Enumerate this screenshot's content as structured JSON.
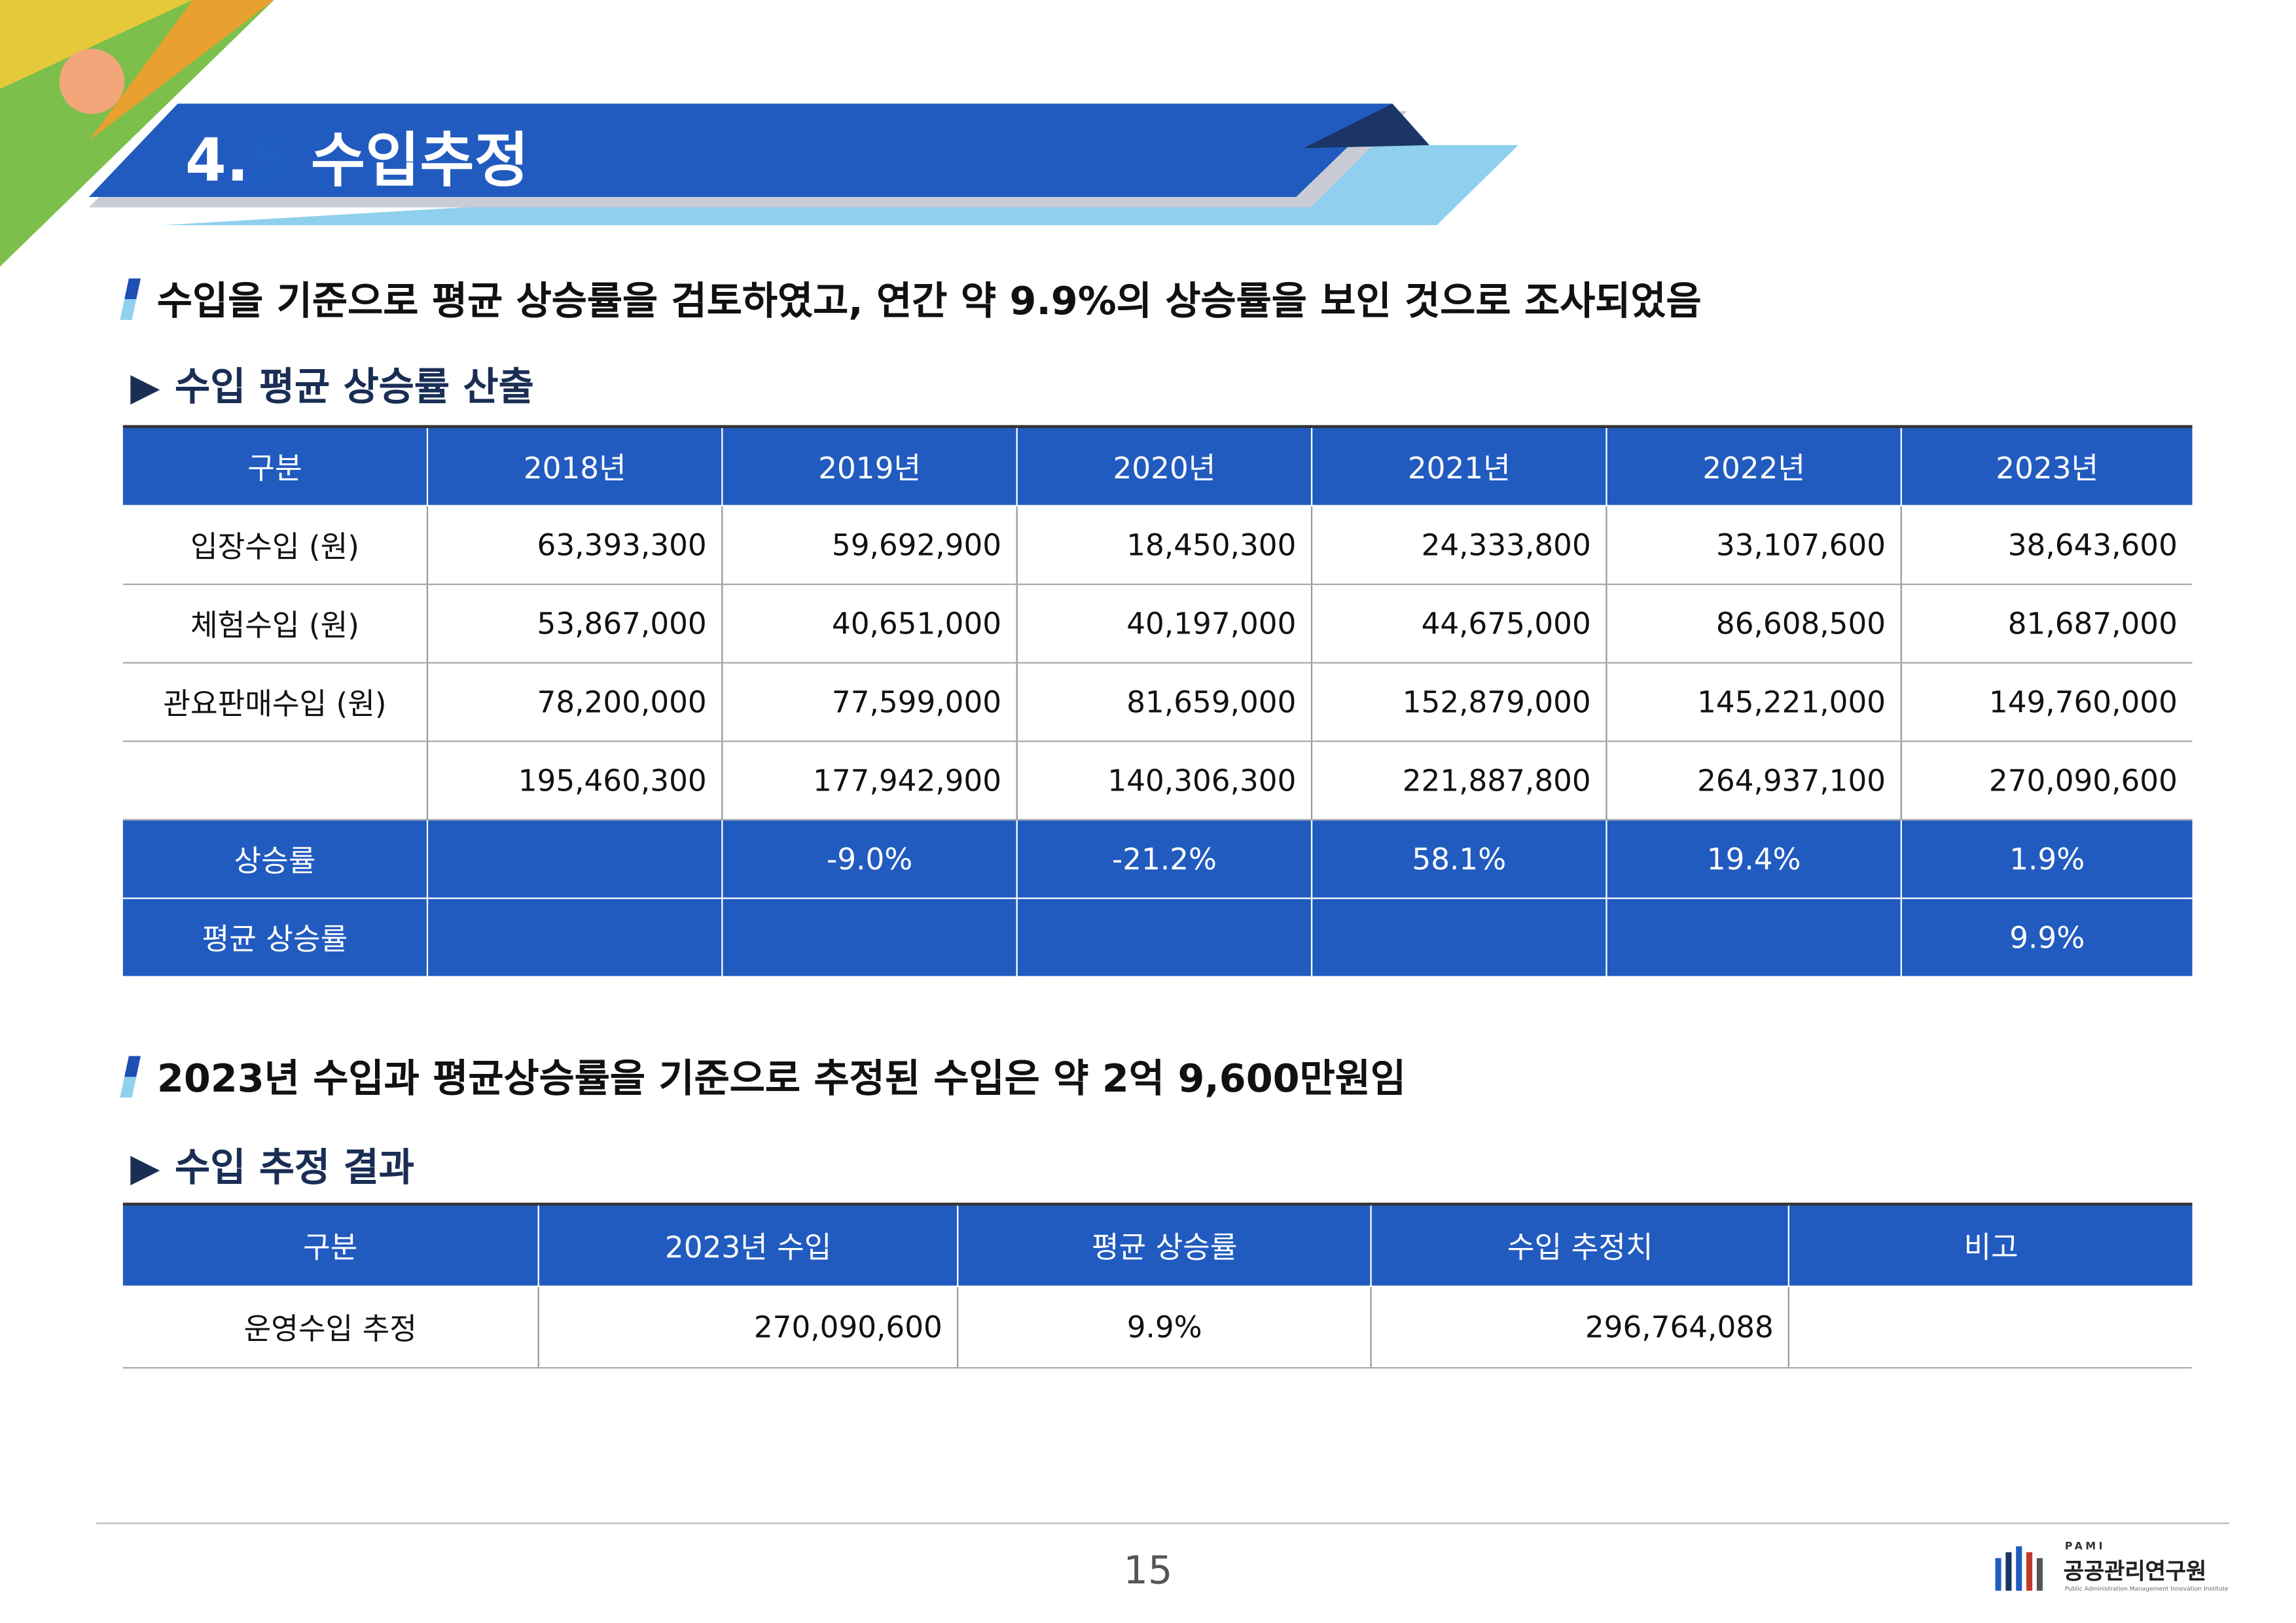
{
  "header": {
    "number": "4.",
    "number_accent": "5",
    "title": "수입추정"
  },
  "section1": {
    "bullet": "수입을 기준으로 평균 상승률을 검토하였고, 연간 약 9.9%의 상승률을 보인 것으로 조사되었음",
    "subheading": "수입 평균 상승률 산출"
  },
  "table1": {
    "header": [
      "구분",
      "2018년",
      "2019년",
      "2020년",
      "2021년",
      "2022년",
      "2023년"
    ],
    "rows": [
      [
        "입장수입 (원)",
        "63,393,300",
        "59,692,900",
        "18,450,300",
        "24,333,800",
        "33,107,600",
        "38,643,600"
      ],
      [
        "체험수입 (원)",
        "53,867,000",
        "40,651,000",
        "40,197,000",
        "44,675,000",
        "86,608,500",
        "81,687,000"
      ],
      [
        "관요판매수입 (원)",
        "78,200,000",
        "77,599,000",
        "81,659,000",
        "152,879,000",
        "145,221,000",
        "149,760,000"
      ],
      [
        null,
        "195,460,300",
        "177,942,900",
        "140,306,300",
        "221,887,800",
        "264,937,100",
        "270,090,600"
      ],
      [
        "상승률",
        null,
        "-9.0%",
        "-21.2%",
        "58.1%",
        "19.4%",
        "1.9%"
      ],
      [
        "평균 상승률",
        null,
        null,
        null,
        null,
        null,
        "9.9%"
      ]
    ]
  },
  "section2": {
    "bullet": "2023년 수입과 평균상승률을 기준으로 추정된 수입은 약 2억 9,600만원임",
    "subheading": "수입 추정 결과"
  },
  "table2": {
    "header": [
      "구분",
      "2023년 수입",
      "평균 상승률",
      "수입 추정치",
      "비고"
    ],
    "rows": [
      [
        "운영수입 추정",
        "270,090,600",
        "9.9%",
        "296,764,088",
        null
      ]
    ]
  },
  "footer": {
    "page": "15",
    "logo_abbr": "PAMI",
    "logo_name": "공공관리연구원",
    "logo_sub": "Public Administration Management Innovation Institute"
  }
}
